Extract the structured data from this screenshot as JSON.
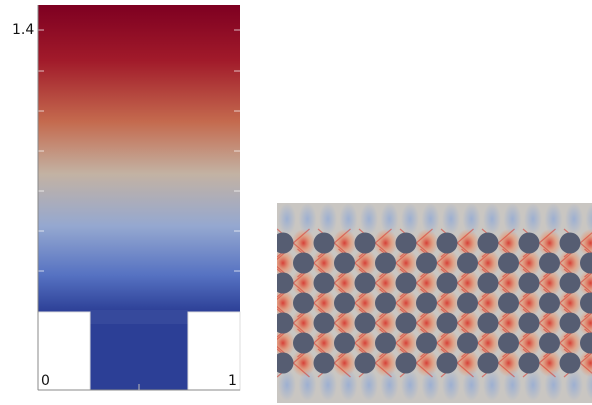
{
  "left_figure": {
    "y_tick_label": "1.4",
    "x_label_left": "0",
    "x_label_right": "1",
    "colormap": [
      "#7e0021",
      "#b03030",
      "#c87a55",
      "#c0b0a0",
      "#9fb0d0",
      "#5a78c8",
      "#2c3f96"
    ],
    "inlet_color": "#2c3f96"
  },
  "right_figure": {
    "background": "#c9c6c2",
    "obstacle_color": "#565d72",
    "accent_colors": [
      "#d9342b",
      "#f0a070",
      "#9db0d6"
    ],
    "rows": 7,
    "cols": 14
  }
}
